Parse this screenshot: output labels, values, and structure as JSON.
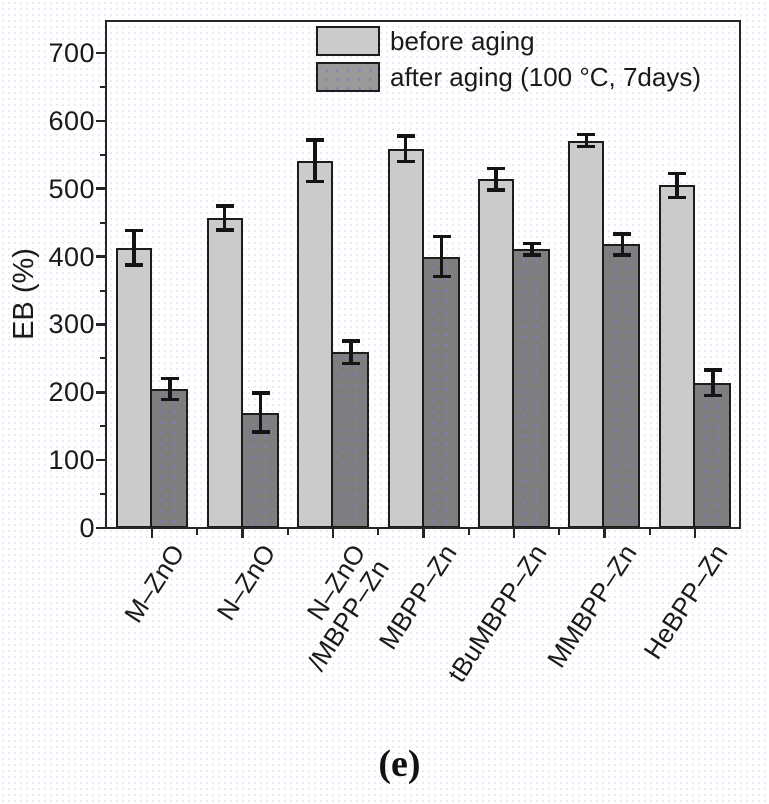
{
  "caption": "(e)",
  "chart_data": {
    "type": "bar",
    "title": "",
    "xlabel": "",
    "ylabel": "EB (%)",
    "ylim": [
      0,
      748
    ],
    "yticks": [
      0,
      100,
      200,
      300,
      400,
      500,
      600,
      700
    ],
    "yticks_minor": [
      50,
      150,
      250,
      350,
      450,
      550,
      650
    ],
    "grid": false,
    "error_bars": true,
    "legend_position": "top-inside",
    "categories": [
      "M–ZnO",
      "N–ZnO",
      "N–ZnO\n/MBPP–Zn",
      "MBPP–Zn",
      "tBuMBPP–Zn",
      "MMBPP–Zn",
      "HeBPP–Zn"
    ],
    "series": [
      {
        "name": "before aging",
        "pattern": "solid",
        "fill": "#cbcbcb",
        "values": [
          413,
          457,
          541,
          559,
          514,
          571,
          505
        ],
        "errors": [
          26,
          18,
          31,
          19,
          16,
          9,
          18
        ]
      },
      {
        "name": "after aging (100 °C, 7days)",
        "pattern": "dots",
        "fill": "#7e7e7e",
        "values": [
          205,
          170,
          259,
          400,
          411,
          418,
          214
        ],
        "errors": [
          16,
          29,
          17,
          30,
          9,
          16,
          19
        ]
      }
    ]
  },
  "colors": {
    "axis": "#262626",
    "bar_border": "#1c1c1c",
    "error_bar": "#141414",
    "before_fill": "#cbcbcb",
    "after_fill": "#7e7e7e",
    "legend_after_swatch": "#9a9a9a",
    "text": "#1a1a1a",
    "background": "#ffffff"
  }
}
